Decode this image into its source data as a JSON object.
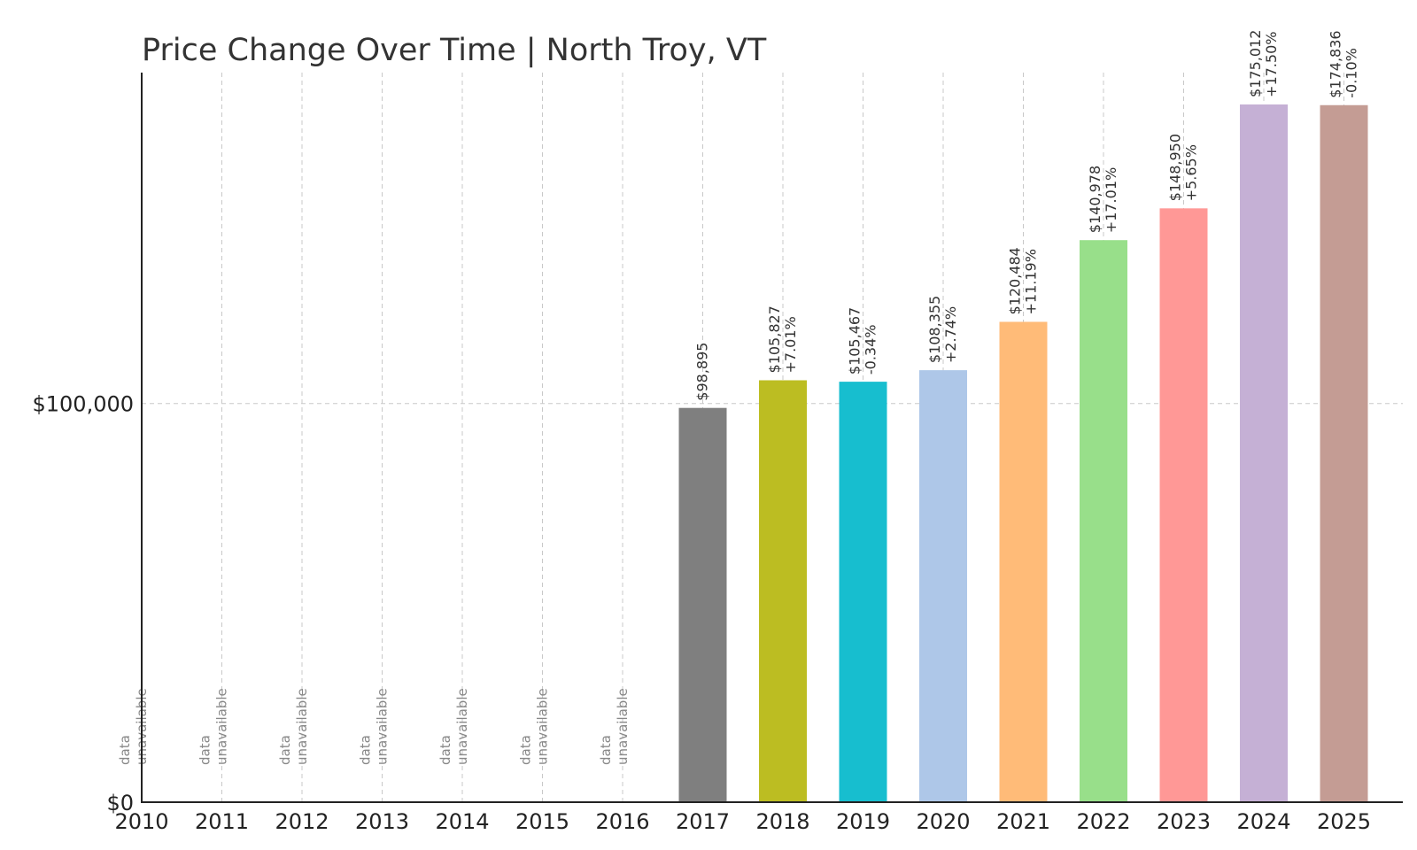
{
  "chart_data": {
    "type": "bar",
    "title": "Price Change Over Time | North Troy, VT",
    "xlabel": "",
    "ylabel": "",
    "ylim": [
      0,
      183000
    ],
    "yticks": [
      {
        "value": 0,
        "label": "$0"
      },
      {
        "value": 100000,
        "label": "$100,000"
      }
    ],
    "grid": true,
    "unavailable_label": [
      "data",
      "unavailable"
    ],
    "categories": [
      "2010",
      "2011",
      "2012",
      "2013",
      "2014",
      "2015",
      "2016",
      "2017",
      "2018",
      "2019",
      "2020",
      "2021",
      "2022",
      "2023",
      "2024",
      "2025"
    ],
    "values": [
      null,
      null,
      null,
      null,
      null,
      null,
      null,
      98895,
      105827,
      105467,
      108355,
      120484,
      140978,
      148950,
      175012,
      174836
    ],
    "value_labels": [
      "",
      "",
      "",
      "",
      "",
      "",
      "",
      "$98,895",
      "$105,827",
      "$105,467",
      "$108,355",
      "$120,484",
      "$140,978",
      "$148,950",
      "$175,012",
      "$174,836"
    ],
    "change_labels": [
      "",
      "",
      "",
      "",
      "",
      "",
      "",
      "",
      "+7.01%",
      "-0.34%",
      "+2.74%",
      "+11.19%",
      "+17.01%",
      "+5.65%",
      "+17.50%",
      "-0.10%"
    ],
    "colors": [
      "#1f77b4",
      "#ff7f0e",
      "#2ca02c",
      "#d62728",
      "#9467bd",
      "#8c564b",
      "#e377c2",
      "#7f7f7f",
      "#bcbd22",
      "#17becf",
      "#aec7e8",
      "#ffbb78",
      "#98df8a",
      "#ff9896",
      "#c5b0d5",
      "#c49c94"
    ]
  }
}
